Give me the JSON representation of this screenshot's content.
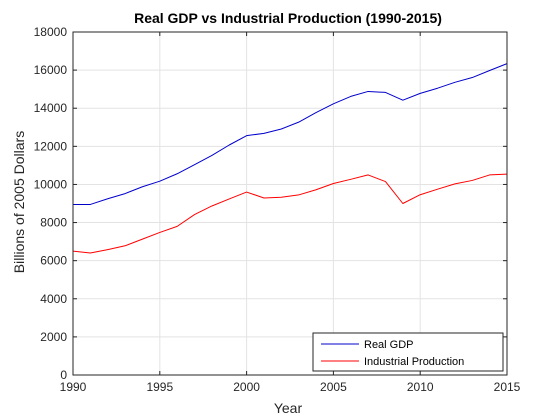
{
  "chart_data": {
    "type": "line",
    "title": "Real GDP vs Industrial Production (1990-2015)",
    "xlabel": "Year",
    "ylabel": "Billions of 2005 Dollars",
    "xlim": [
      1990,
      2015
    ],
    "ylim": [
      0,
      18000
    ],
    "xticks": [
      1990,
      1995,
      2000,
      2005,
      2010,
      2015
    ],
    "yticks": [
      0,
      2000,
      4000,
      6000,
      8000,
      10000,
      12000,
      14000,
      16000,
      18000
    ],
    "grid": true,
    "legend_position": "bottom-right",
    "x": [
      1990,
      1991,
      1992,
      1993,
      1994,
      1995,
      1996,
      1997,
      1998,
      1999,
      2000,
      2001,
      2002,
      2003,
      2004,
      2005,
      2006,
      2007,
      2008,
      2009,
      2010,
      2011,
      2012,
      2013,
      2014,
      2015
    ],
    "series": [
      {
        "name": "Real GDP",
        "color": "#0000cc",
        "values": [
          8950,
          8950,
          9250,
          9520,
          9880,
          10170,
          10560,
          11040,
          11520,
          12070,
          12560,
          12680,
          12910,
          13270,
          13770,
          14230,
          14620,
          14880,
          14830,
          14420,
          14780,
          15050,
          15360,
          15610,
          15980,
          16340
        ]
      },
      {
        "name": "Industrial Production",
        "color": "#ff0000",
        "values": [
          6500,
          6400,
          6580,
          6780,
          7130,
          7480,
          7800,
          8420,
          8870,
          9240,
          9600,
          9290,
          9330,
          9450,
          9720,
          10050,
          10270,
          10500,
          10150,
          9000,
          9460,
          9750,
          10030,
          10210,
          10500,
          10540
        ]
      }
    ]
  }
}
